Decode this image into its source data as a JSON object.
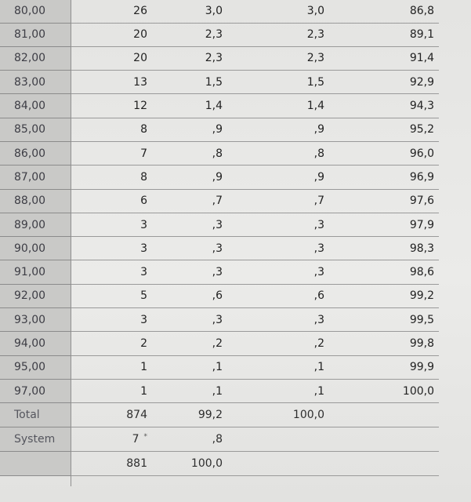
{
  "table": {
    "rows": [
      [
        "80,00",
        "26",
        "3,0",
        "3,0",
        "86,8"
      ],
      [
        "81,00",
        "20",
        "2,3",
        "2,3",
        "89,1"
      ],
      [
        "82,00",
        "20",
        "2,3",
        "2,3",
        "91,4"
      ],
      [
        "83,00",
        "13",
        "1,5",
        "1,5",
        "92,9"
      ],
      [
        "84,00",
        "12",
        "1,4",
        "1,4",
        "94,3"
      ],
      [
        "85,00",
        "8",
        ",9",
        ",9",
        "95,2"
      ],
      [
        "86,00",
        "7",
        ",8",
        ",8",
        "96,0"
      ],
      [
        "87,00",
        "8",
        ",9",
        ",9",
        "96,9"
      ],
      [
        "88,00",
        "6",
        ",7",
        ",7",
        "97,6"
      ],
      [
        "89,00",
        "3",
        ",3",
        ",3",
        "97,9"
      ],
      [
        "90,00",
        "3",
        ",3",
        ",3",
        "98,3"
      ],
      [
        "91,00",
        "3",
        ",3",
        ",3",
        "98,6"
      ],
      [
        "92,00",
        "5",
        ",6",
        ",6",
        "99,2"
      ],
      [
        "93,00",
        "3",
        ",3",
        ",3",
        "99,5"
      ],
      [
        "94,00",
        "2",
        ",2",
        ",2",
        "99,8"
      ],
      [
        "95,00",
        "1",
        ",1",
        ",1",
        "99,9"
      ],
      [
        "97,00",
        "1",
        ",1",
        ",1",
        "100,0"
      ]
    ],
    "total": {
      "label": "Total",
      "frequency": "874",
      "percent": "99,2",
      "valid_percent": "100,0"
    },
    "system": {
      "label": "System",
      "frequency": "7",
      "percent": ",8",
      "marker": "*"
    },
    "sum": {
      "frequency": "881",
      "percent": "100,0"
    }
  }
}
